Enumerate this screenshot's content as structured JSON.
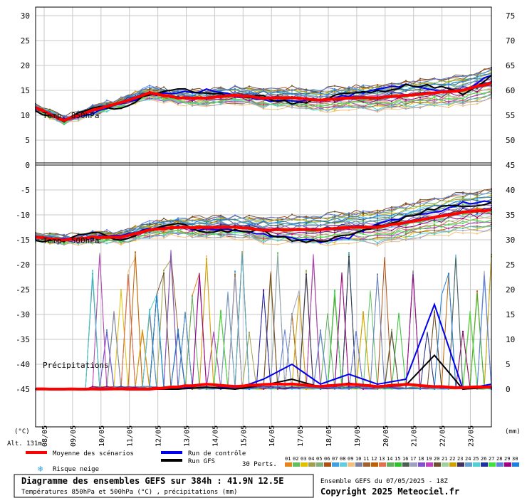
{
  "chart_data": {
    "type": "line",
    "title": "Diagramme des ensembles GEFS sur 384h : 41.9N 12.5E",
    "subtitle": "Températures 850hPa et 500hPa (°C) , précipitations (mm)",
    "run_info": "Ensemble GEFS du 07/05/2025 - 18Z",
    "copyright": "Copyright 2025 Meteociel.fr",
    "left_axis_label": "(°C)",
    "right_axis_label": "(mm)",
    "altitude": "Alt. 131m",
    "left_ticks": [
      "30",
      "25",
      "20",
      "15",
      "10",
      "5",
      "0",
      "-5",
      "-10",
      "-15",
      "-20",
      "-25",
      "-30",
      "-35",
      "-40",
      "-45"
    ],
    "right_ticks": [
      "75",
      "70",
      "65",
      "60",
      "55",
      "50",
      "45",
      "40",
      "35",
      "30",
      "25",
      "20",
      "15",
      "10",
      "5",
      "0"
    ],
    "dates": [
      "08/05",
      "09/05",
      "10/05",
      "11/05",
      "12/05",
      "13/05",
      "14/05",
      "15/05",
      "16/05",
      "17/05",
      "18/05",
      "19/05",
      "20/05",
      "21/05",
      "22/05",
      "23/05"
    ],
    "panels": {
      "t850": {
        "label": "Temp. 850hPa",
        "mean": [
          6.5,
          4,
          6,
          7.5,
          9.5,
          8.5,
          8.5,
          9,
          8.5,
          8.5,
          8,
          8.5,
          8.5,
          9,
          9.5,
          10,
          11.5
        ],
        "control": [
          6.5,
          4,
          5.5,
          7.5,
          9,
          9.5,
          10,
          9,
          8,
          8,
          8,
          9,
          10.5,
          11,
          10,
          10,
          13
        ]
      },
      "t500": {
        "label": "Temp. 500hPa",
        "mean": [
          -19.5,
          -20,
          -19.5,
          -19.5,
          -18,
          -17.5,
          -17.5,
          -17.5,
          -18,
          -18,
          -18,
          -17.5,
          -17.5,
          -16.5,
          -15.5,
          -14.5,
          -14
        ],
        "control": [
          -19.5,
          -20,
          -19.5,
          -19,
          -18,
          -17.5,
          -18,
          -18,
          -19,
          -19.5,
          -20.5,
          -19.5,
          -16.5,
          -15.5,
          -14.5,
          -12.5,
          -12.5
        ]
      },
      "precip": {
        "label": "Précipitations",
        "mean": [
          0,
          0,
          0,
          0,
          0,
          0.5,
          1,
          0.5,
          1,
          1,
          0.5,
          1,
          0.5,
          1,
          0.5,
          0.3,
          0.5
        ],
        "control": [
          0,
          0,
          0,
          0,
          0,
          0,
          1,
          0,
          2,
          5,
          1,
          3,
          1,
          2,
          17,
          0,
          1
        ]
      }
    },
    "legend": {
      "mean": "Moyenne des scénarios",
      "control": "Run de contrôle",
      "gfs": "Run GFS",
      "snow": "Risque neige",
      "perts": "30 Perts."
    },
    "colors": {
      "mean": "#ff0000",
      "control": "#0000ee",
      "gfs": "#000000",
      "grid": "#c8c8c8",
      "perts": [
        "#e8841c",
        "#60c060",
        "#e0c000",
        "#a0a050",
        "#80b080",
        "#b05010",
        "#40a0e0",
        "#60d0e0",
        "#f0c080",
        "#8080a0",
        "#a06030",
        "#c06000",
        "#e07050",
        "#60b060",
        "#30c030",
        "#506050",
        "#a0a0c0",
        "#8050d0",
        "#c040c0",
        "#705030",
        "#a0d0a0",
        "#d0a000",
        "#403060",
        "#60a0d0",
        "#50d0d0",
        "#2030a0",
        "#40e040",
        "#6080e0",
        "#a00080",
        "#2080e0"
      ]
    }
  }
}
